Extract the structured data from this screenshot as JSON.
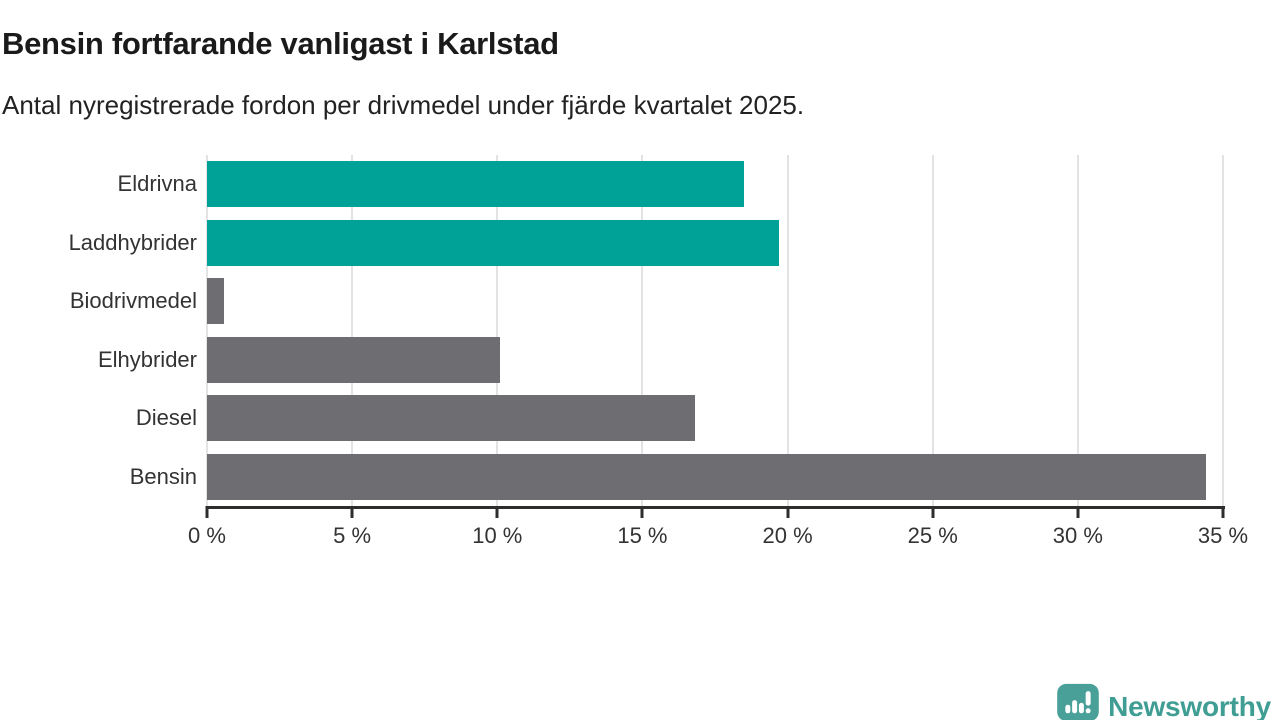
{
  "header": {
    "title": "Bensin fortfarande vanligast i Karlstad",
    "subtitle": "Antal nyregistrerade fordon per drivmedel under fjärde kvartalet 2025."
  },
  "chart_data": {
    "type": "bar",
    "orientation": "horizontal",
    "categories": [
      "Eldrivna",
      "Laddhybrider",
      "Biodrivmedel",
      "Elhybrider",
      "Diesel",
      "Bensin"
    ],
    "values": [
      18.5,
      19.7,
      0.6,
      10.1,
      16.8,
      34.4
    ],
    "unit": "%",
    "bar_colors": [
      "#00a298",
      "#00a298",
      "#6d6d72",
      "#6d6d72",
      "#6d6d72",
      "#6d6d72"
    ],
    "accent_color": "#00a298",
    "muted_color": "#6d6d72",
    "xlim": [
      0,
      35
    ],
    "x_ticks": [
      0,
      5,
      10,
      15,
      20,
      25,
      30,
      35
    ],
    "x_tick_labels": [
      "0 %",
      "5 %",
      "10 %",
      "15 %",
      "20 %",
      "25 %",
      "30 %",
      "35 %"
    ],
    "grid": "vertical",
    "gridline_color": "#e3e3e3",
    "axis_color": "#2d2d2d",
    "tick_label_color": "#333333",
    "legend": "none"
  },
  "footer": {
    "brand": "Newsworthy",
    "icon": "newsworthy-speech-bubble-chart-icon",
    "icon_color": "#48a099",
    "text_color": "#3f9d94"
  }
}
